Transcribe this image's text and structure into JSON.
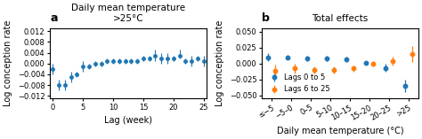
{
  "chart_data": [
    {
      "type": "errorbar",
      "title": "Daily mean temperature\n>25°C",
      "xlabel": "Lag (week)",
      "ylabel": "Log conception rate",
      "annotations": [
        "a"
      ],
      "xlim": [
        -0.5,
        25.5
      ],
      "xticks": [
        0,
        5,
        10,
        15,
        20,
        25
      ],
      "ylim": [
        -0.013,
        0.013
      ],
      "yticks": [
        {
          "value": -0.012,
          "label": "−0.012"
        },
        {
          "value": -0.008,
          "label": "−0.008"
        },
        {
          "value": -0.004,
          "label": "−0.004"
        },
        {
          "value": 0.0,
          "label": "0.000"
        },
        0.004,
        0.008,
        0.012
      ],
      "x": [
        0,
        1,
        2,
        3,
        4,
        5,
        6,
        7,
        8,
        9,
        10,
        11,
        12,
        13,
        14,
        15,
        16,
        17,
        18,
        19,
        20,
        21,
        22,
        23,
        24,
        25
      ],
      "values": [
        -0.002,
        -0.008,
        -0.008,
        -0.005,
        -0.004,
        -0.001,
        -0.001,
        0.0,
        0.0,
        0.001,
        0.001,
        0.001,
        0.001,
        0.001,
        0.001,
        0.002,
        0.002,
        0.003,
        0.002,
        0.002,
        0.002,
        0.003,
        0.001,
        0.001,
        0.002,
        0.001
      ],
      "err_lo": [
        0.002,
        0.002,
        0.002,
        0.002,
        0.001,
        0.002,
        0.001,
        0.001,
        0.001,
        0.001,
        0.001,
        0.001,
        0.001,
        0.001,
        0.001,
        0.001,
        0.001,
        0.002,
        0.002,
        0.002,
        0.001,
        0.001,
        0.001,
        0.002,
        0.001,
        0.002
      ],
      "err_hi": [
        0.002,
        0.002,
        0.002,
        0.002,
        0.001,
        0.002,
        0.001,
        0.001,
        0.001,
        0.001,
        0.001,
        0.001,
        0.001,
        0.001,
        0.001,
        0.001,
        0.001,
        0.002,
        0.002,
        0.002,
        0.001,
        0.002,
        0.001,
        0.002,
        0.001,
        0.002
      ]
    },
    {
      "type": "errorbar",
      "title": "Total effects",
      "xlabel": "Daily mean temperature (°C)",
      "ylabel": "Log conception rate",
      "annotations": [
        "b"
      ],
      "categories": [
        "≤−5",
        "−5–0",
        "0–5",
        "5–10",
        "10–15",
        "15–20",
        "20–25",
        ">25"
      ],
      "ylim": [
        -0.055,
        0.055
      ],
      "yticks": [
        {
          "value": -0.05,
          "label": "−0.050"
        },
        {
          "value": -0.025,
          "label": "−0.025"
        },
        {
          "value": 0.0,
          "label": "0.000"
        },
        {
          "value": 0.025,
          "label": "0.025"
        },
        {
          "value": 0.05,
          "label": "0.050"
        }
      ],
      "legend": "lower left",
      "series": [
        {
          "name": "Lags 0 to 5",
          "values": [
            0.01,
            0.01,
            0.008,
            0.008,
            0.007,
            0.001,
            -0.007,
            -0.035
          ],
          "errors": [
            0.006,
            0.004,
            0.004,
            0.004,
            0.004,
            0.003,
            0.006,
            0.01
          ]
        },
        {
          "name": "Lags 6 to 25",
          "values": [
            -0.012,
            -0.008,
            -0.01,
            -0.01,
            -0.008,
            0.0,
            0.004,
            0.015
          ],
          "errors": [
            0.01,
            0.007,
            0.006,
            0.006,
            0.005,
            0.004,
            0.007,
            0.012
          ]
        }
      ]
    }
  ]
}
